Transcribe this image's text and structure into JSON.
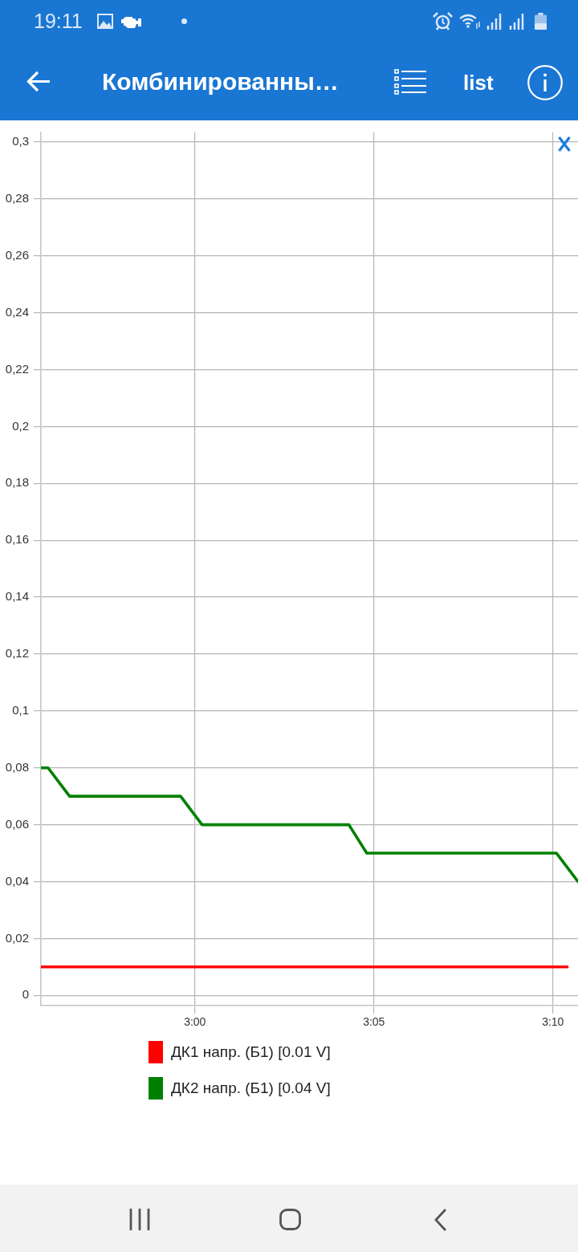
{
  "chart_data": {
    "type": "line",
    "title": "Комбинированны…",
    "annotations": [
      "19:11",
      "list"
    ],
    "xlim": [
      175.7,
      190.7
    ],
    "xticks": [
      {
        "value": 180,
        "label": "3:00"
      },
      {
        "value": 185,
        "label": "3:05"
      },
      {
        "value": 190,
        "label": "3:10"
      }
    ],
    "ylim": [
      -0.0036,
      0.3034
    ],
    "yticks": [
      {
        "value": 0,
        "label": "0"
      },
      {
        "value": 0.02,
        "label": "0,02"
      },
      {
        "value": 0.04,
        "label": "0,04"
      },
      {
        "value": 0.06,
        "label": "0,06"
      },
      {
        "value": 0.08,
        "label": "0,08"
      },
      {
        "value": 0.1,
        "label": "0,1"
      },
      {
        "value": 0.12,
        "label": "0,12"
      },
      {
        "value": 0.14,
        "label": "0,14"
      },
      {
        "value": 0.16,
        "label": "0,16"
      },
      {
        "value": 0.18,
        "label": "0,18"
      },
      {
        "value": 0.2,
        "label": "0,2"
      },
      {
        "value": 0.22,
        "label": "0,22"
      },
      {
        "value": 0.24,
        "label": "0,24"
      },
      {
        "value": 0.26,
        "label": "0,26"
      },
      {
        "value": 0.28,
        "label": "0,28"
      },
      {
        "value": 0.3,
        "label": "0,3"
      }
    ],
    "series": [
      {
        "name": "ДК1 напр. (Б1) [0.01 V]",
        "color": "#ff0000",
        "x": [
          175.7,
          190.4
        ],
        "values": [
          0.01,
          0.01
        ]
      },
      {
        "name": "ДК2 напр. (Б1) [0.04 V]",
        "color": "#008000",
        "x": [
          175.7,
          175.9,
          176.5,
          179.6,
          180.2,
          184.3,
          184.8,
          190.1,
          190.7
        ],
        "values": [
          0.08,
          0.08,
          0.07,
          0.07,
          0.06,
          0.06,
          0.05,
          0.05,
          0.04
        ]
      }
    ],
    "grid": true,
    "legend": "bottom",
    "marker": "none",
    "line_style": "solid"
  }
}
